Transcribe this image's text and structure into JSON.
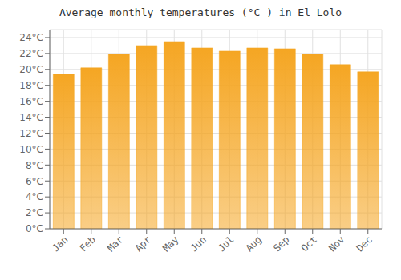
{
  "chart_data": {
    "type": "bar",
    "title": "Average monthly temperatures (°C ) in El Lolo",
    "categories": [
      "Jan",
      "Feb",
      "Mar",
      "Apr",
      "May",
      "Jun",
      "Jul",
      "Aug",
      "Sep",
      "Oct",
      "Nov",
      "Dec"
    ],
    "values": [
      19.4,
      20.2,
      21.9,
      23.0,
      23.5,
      22.7,
      22.3,
      22.7,
      22.6,
      21.9,
      20.6,
      19.7
    ],
    "color": "#F5A623",
    "ylim": [
      0,
      25
    ],
    "yticks": [
      {
        "value": 0,
        "label": "0°C"
      },
      {
        "value": 2,
        "label": "2°C"
      },
      {
        "value": 4,
        "label": "4°C"
      },
      {
        "value": 6,
        "label": "6°C"
      },
      {
        "value": 8,
        "label": "8°C"
      },
      {
        "value": 10,
        "label": "10°C"
      },
      {
        "value": 12,
        "label": "12°C"
      },
      {
        "value": 14,
        "label": "14°C"
      },
      {
        "value": 16,
        "label": "16°C"
      },
      {
        "value": 18,
        "label": "18°C"
      },
      {
        "value": 20,
        "label": "20°C"
      },
      {
        "value": 22,
        "label": "22°C"
      },
      {
        "value": 24,
        "label": "24°C"
      }
    ],
    "grid": true
  }
}
